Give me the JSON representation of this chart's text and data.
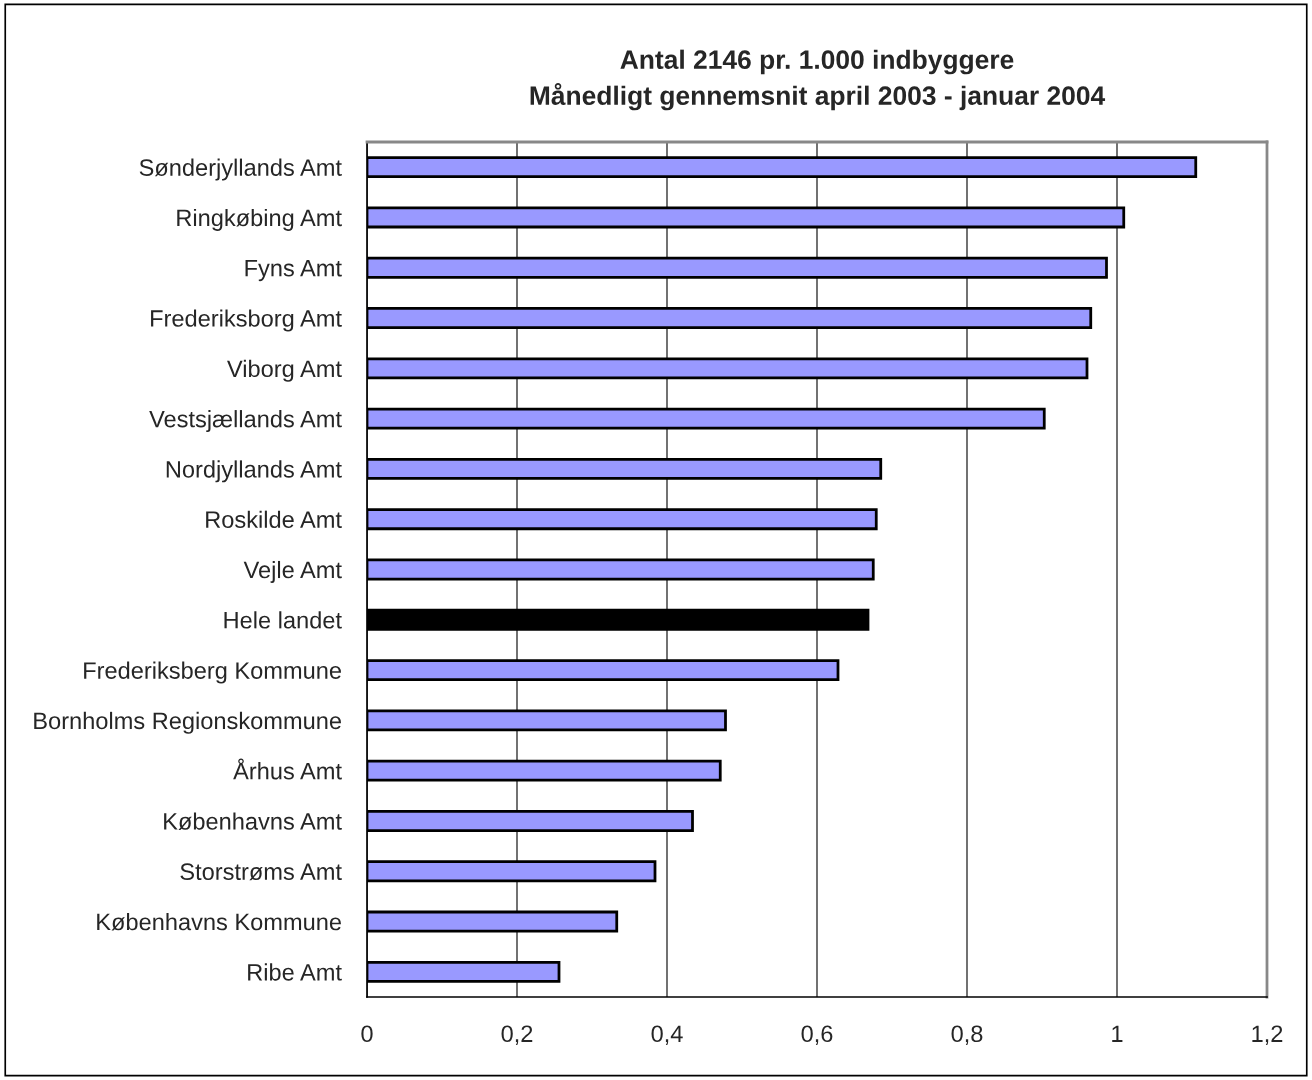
{
  "chart_data": {
    "type": "bar",
    "orientation": "horizontal",
    "title": "Antal 2146 pr. 1.000 indbyggere\nMånedligt gennemsnit april 2003 - januar 2004",
    "categories": [
      "Sønderjyllands Amt",
      "Ringkøbing Amt",
      "Fyns Amt",
      "Frederiksborg Amt",
      "Viborg Amt",
      "Vestsjællands Amt",
      "Nordjyllands Amt",
      "Roskilde Amt",
      "Vejle Amt",
      "Hele landet",
      "Frederiksberg Kommune",
      "Bornholms Regionskommune",
      "Århus Amt",
      "Københavns Amt",
      "Storstrøms Amt",
      "Københavns Kommune",
      "Ribe Amt"
    ],
    "values": [
      1.105,
      1.009,
      0.986,
      0.965,
      0.96,
      0.903,
      0.685,
      0.679,
      0.675,
      0.668,
      0.628,
      0.478,
      0.471,
      0.434,
      0.384,
      0.333,
      0.256
    ],
    "colors": [
      "#9999ff",
      "#9999ff",
      "#9999ff",
      "#9999ff",
      "#9999ff",
      "#9999ff",
      "#9999ff",
      "#9999ff",
      "#9999ff",
      "#000000",
      "#9999ff",
      "#9999ff",
      "#9999ff",
      "#9999ff",
      "#9999ff",
      "#9999ff",
      "#9999ff"
    ],
    "xlim": [
      0,
      1.2
    ],
    "xticks": [
      0,
      {
        "value": 0.2,
        "label": "0,2"
      },
      {
        "value": 0.4,
        "label": "0,4"
      },
      {
        "value": 0.6,
        "label": "0,6"
      },
      {
        "value": 0.8,
        "label": "0,8"
      },
      1,
      {
        "value": 1.2,
        "label": "1,2"
      }
    ],
    "grid": "x",
    "legend": false
  }
}
